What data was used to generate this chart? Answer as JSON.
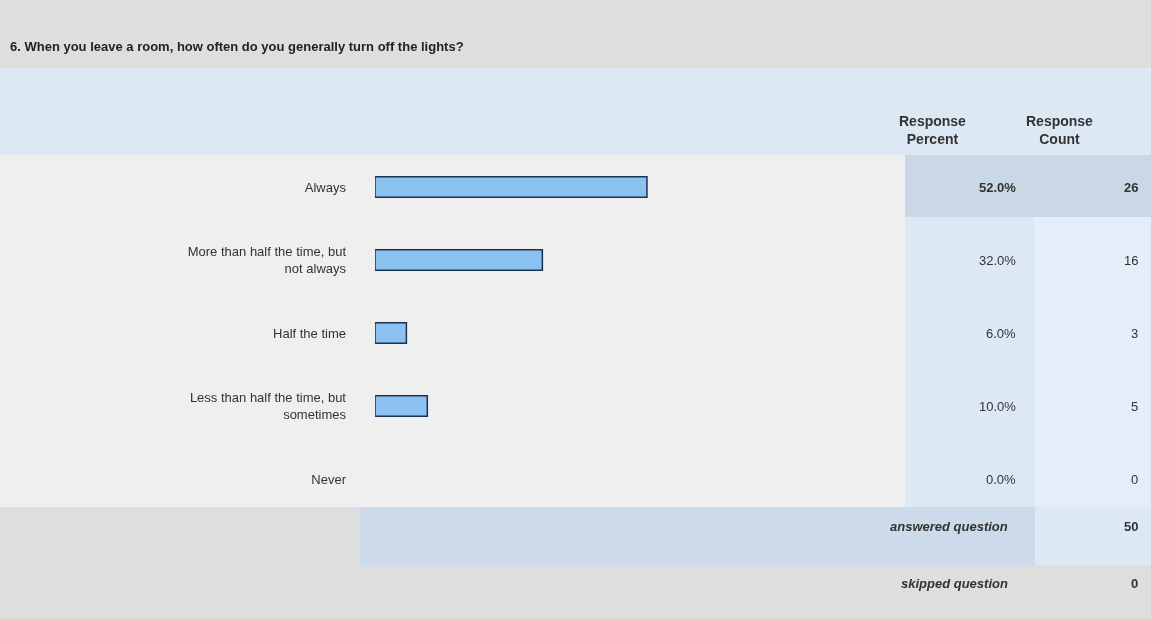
{
  "chart_data": {
    "type": "bar",
    "orientation": "horizontal",
    "title": "6. When you leave a room, how often do you generally turn off the lights?",
    "categories": [
      "Always",
      "More than half the time, but not always",
      "Half the time",
      "Less than half the time, but sometimes",
      "Never"
    ],
    "series": [
      {
        "name": "Response Percent",
        "color": "#8cc2f2",
        "values": [
          52,
          32,
          6,
          10,
          0
        ],
        "value_labels": [
          "52.0%",
          "32.0%",
          "6.0%",
          "10.0%",
          "0.0%"
        ]
      }
    ],
    "annotations": [
      "Response Count",
      "26",
      "16",
      "3",
      "5",
      "0",
      "answered question",
      "50",
      "skipped question",
      "0"
    ],
    "legend": false
  }
}
